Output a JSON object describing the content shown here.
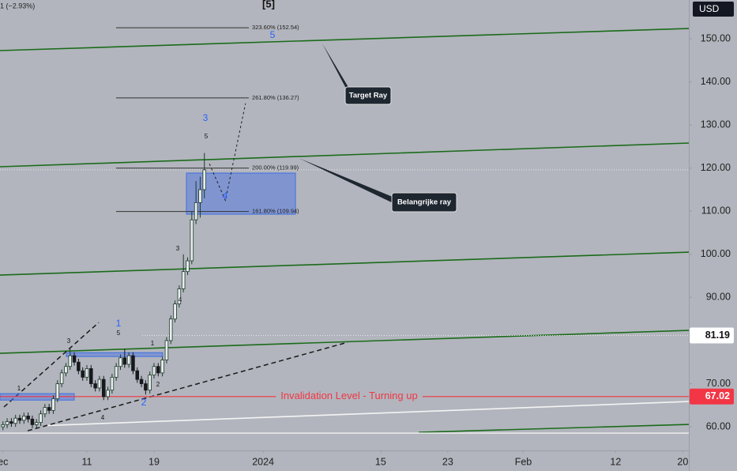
{
  "chart_data": {
    "type": "candlestick",
    "header": "1 (−2.93%)",
    "wave_title": "[5]",
    "currency": "USD",
    "x": [
      1,
      1.5,
      2,
      2.5,
      3,
      3.5,
      4,
      4.5,
      5,
      5.5,
      6,
      6.5,
      7,
      7.5,
      8,
      8.5,
      9,
      9.5,
      10,
      10.5,
      11,
      11.5,
      12,
      12.5,
      13,
      13.5,
      14,
      14.5,
      15,
      15.5,
      16,
      16.5,
      17,
      17.5,
      18,
      18.5,
      19,
      19.5,
      20,
      20.5,
      21,
      21.5,
      22,
      22.5,
      23,
      23.5,
      24,
      24.5,
      25
    ],
    "open": [
      60.0,
      60.5,
      61.2,
      60.8,
      62.0,
      61.5,
      62.5,
      61.8,
      60.5,
      61.0,
      63.0,
      64.5,
      63.8,
      66.5,
      70.0,
      72.5,
      74.0,
      76.5,
      75.0,
      73.0,
      71.5,
      73.5,
      70.0,
      69.0,
      71.0,
      67.0,
      68.5,
      71.5,
      74.0,
      76.0,
      74.5,
      76.5,
      73.0,
      71.0,
      70.0,
      68.5,
      72.0,
      74.0,
      72.5,
      75.5,
      80.0,
      85.0,
      88.5,
      92.0,
      96.0,
      98.5,
      108.0,
      112.0,
      115.0
    ],
    "high": [
      61.3,
      62.0,
      62.0,
      62.8,
      62.8,
      63.3,
      63.3,
      62.6,
      61.8,
      63.8,
      65.3,
      65.3,
      67.3,
      70.8,
      73.3,
      74.8,
      78.5,
      77.3,
      75.8,
      73.8,
      74.3,
      74.3,
      70.8,
      71.8,
      71.8,
      69.3,
      72.3,
      74.8,
      76.8,
      78.0,
      77.3,
      77.3,
      73.8,
      71.8,
      70.8,
      72.8,
      74.8,
      74.8,
      76.3,
      80.8,
      85.8,
      89.3,
      92.8,
      100.0,
      99.3,
      110.0,
      117.0,
      118.0,
      123.5
    ],
    "low": [
      59.2,
      59.7,
      60.0,
      60.0,
      60.7,
      60.7,
      61.0,
      59.7,
      59.7,
      60.2,
      62.2,
      63.0,
      63.0,
      65.7,
      69.2,
      71.7,
      73.2,
      74.2,
      72.2,
      70.7,
      70.7,
      69.2,
      68.2,
      68.2,
      66.2,
      66.2,
      67.7,
      70.7,
      73.2,
      73.7,
      73.7,
      72.2,
      70.2,
      69.2,
      67.5,
      67.7,
      71.2,
      71.7,
      71.7,
      74.7,
      79.2,
      84.2,
      87.7,
      91.2,
      95.2,
      97.7,
      107.0,
      108.5,
      113.0
    ],
    "close": [
      60.5,
      61.2,
      60.8,
      62.0,
      61.5,
      62.5,
      61.8,
      60.5,
      61.0,
      63.0,
      64.5,
      63.8,
      66.5,
      70.0,
      72.5,
      74.0,
      76.5,
      75.0,
      73.0,
      71.5,
      73.5,
      70.0,
      69.0,
      71.0,
      67.0,
      68.5,
      71.5,
      74.0,
      76.0,
      74.5,
      76.5,
      73.0,
      71.0,
      70.0,
      68.5,
      72.0,
      74.0,
      72.5,
      75.5,
      80.0,
      85.0,
      88.5,
      92.0,
      96.0,
      98.5,
      108.0,
      112.0,
      115.0,
      119.6
    ],
    "up_color": "#1d3b2a",
    "down_color": "#16181c",
    "xlim": [
      0.647,
      82.72
    ],
    "xticks": [
      {
        "value": 1,
        "label": "ec"
      },
      11,
      19,
      {
        "value": 32,
        "label": "2024"
      },
      {
        "value": 46,
        "label": "15"
      },
      {
        "value": 54,
        "label": "23"
      },
      {
        "value": 63,
        "label": "Feb"
      },
      {
        "value": 74,
        "label": "12"
      },
      {
        "value": 82,
        "label": "20"
      }
    ],
    "ylim": [
      54.52,
      158.98
    ],
    "yticks": [
      {
        "value": 60,
        "label": "60.00"
      },
      {
        "value": 70,
        "label": "70.00"
      },
      {
        "value": 80,
        "label": "80.00"
      },
      {
        "value": 90,
        "label": "90.00"
      },
      {
        "value": 100,
        "label": "100.00"
      },
      {
        "value": 110,
        "label": "110.00"
      },
      {
        "value": 120,
        "label": "120.00"
      },
      {
        "value": 130,
        "label": "130.00"
      },
      {
        "value": 140,
        "label": "140.00"
      },
      {
        "value": 150,
        "label": "150.00"
      }
    ],
    "fib_span": [
      14.48,
      30.3
    ],
    "fib_levels": [
      {
        "value": 152.54,
        "label": "323.60% (152.54)"
      },
      {
        "value": 136.27,
        "label": "261.80% (136.27)"
      },
      {
        "value": 119.99,
        "label": "200.00% (119.99)"
      },
      {
        "value": 109.94,
        "label": "161.80% (109.94)"
      }
    ],
    "invalidation": {
      "value": 67.02,
      "label": "67.02",
      "text": "Invalidation Level - Turning up",
      "color": "#f23645"
    },
    "marker": {
      "value": 81.19,
      "label": "81.19"
    },
    "last_price": 119.6,
    "trendlines": [
      {
        "from": [
          0.647,
          147.25
        ],
        "to": [
          82.72,
          152.38
        ],
        "color": "#1b6b1b",
        "style": "solid"
      },
      {
        "from": [
          0.647,
          120.31
        ],
        "to": [
          82.72,
          125.81
        ],
        "color": "#1b6b1b",
        "style": "solid"
      },
      {
        "from": [
          0.647,
          95.2
        ],
        "to": [
          82.72,
          100.5
        ],
        "color": "#1b6b1b",
        "style": "solid"
      },
      {
        "from": [
          0.647,
          77.05
        ],
        "to": [
          82.72,
          82.37
        ],
        "color": "#1b6b1b",
        "style": "solid"
      },
      {
        "from": [
          50.53,
          58.72
        ],
        "to": [
          82.72,
          60.56
        ],
        "color": "#1b6b1b",
        "style": "solid"
      },
      {
        "from": [
          6.29,
          60.3
        ],
        "to": [
          82.72,
          65.87
        ],
        "color": "#f4f4f4",
        "style": "solid"
      },
      {
        "from": [
          0.647,
          58.54
        ],
        "to": [
          82.72,
          58.54
        ],
        "color": "#e8e8e8",
        "style": "solid"
      },
      {
        "from": [
          3.94,
          59.09
        ],
        "to": [
          42.06,
          79.6
        ],
        "color": "#1a1a1a",
        "style": "dashed"
      },
      {
        "from": [
          1.12,
          64.6
        ],
        "to": [
          12.41,
          84.2
        ],
        "color": "#1a1a1a",
        "style": "dashed"
      }
    ],
    "boxes": [
      {
        "from": [
          22.86,
          118.84
        ],
        "to": [
          35.85,
          109.3
        ]
      },
      {
        "from": [
          8.55,
          77.2
        ],
        "to": [
          20.03,
          76.3
        ]
      },
      {
        "from": [
          0.647,
          67.7
        ],
        "to": [
          9.49,
          66.2
        ]
      }
    ],
    "projection": {
      "x": [
        25.6,
        27.5,
        29.9
      ],
      "y": [
        121.0,
        112.5,
        135.0
      ]
    },
    "callouts": [
      {
        "text": "Target Ray"
      },
      {
        "text": "Belangrijke ray"
      }
    ],
    "wave_labels": [
      {
        "text": "5",
        "color": "#2962ff"
      },
      {
        "text": "3",
        "color": "#2962ff"
      },
      {
        "text": "4",
        "color": "#2962ff"
      },
      {
        "text": "1",
        "color": "#2962ff"
      },
      {
        "text": "2",
        "color": "#2962ff"
      },
      {
        "text": "5",
        "color": "#111111"
      },
      {
        "text": "3",
        "color": "#111111"
      },
      {
        "text": "4",
        "color": "#111111"
      },
      {
        "text": "3",
        "color": "#111111"
      },
      {
        "text": "5",
        "color": "#111111"
      },
      {
        "text": "1",
        "color": "#111111"
      },
      {
        "text": "2",
        "color": "#111111"
      },
      {
        "text": "4",
        "color": "#111111"
      },
      {
        "text": "1",
        "color": "#111111"
      }
    ]
  }
}
